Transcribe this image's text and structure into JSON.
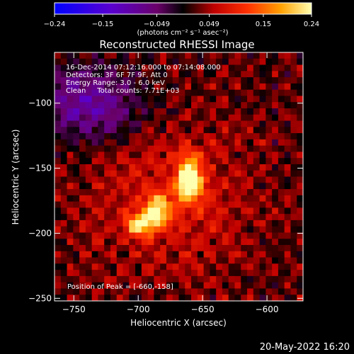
{
  "chart_data": {
    "type": "heatmap",
    "title": "Reconstructed RHESSI Image",
    "xlabel": "Heliocentric X (arcsec)",
    "ylabel": "Heliocentric Y (arcsec)",
    "xlim": [
      -765,
      -572
    ],
    "ylim": [
      -252,
      -61
    ],
    "x_ticks": [
      -750,
      -700,
      -650,
      -600
    ],
    "y_ticks": [
      -250,
      -200,
      -150,
      -100
    ],
    "x_tick_labels": [
      "−750",
      "−700",
      "−650",
      "−600"
    ],
    "y_tick_labels": [
      "−250",
      "−200",
      "−150",
      "−100"
    ],
    "colorbar": {
      "range": [
        -0.24,
        0.24
      ],
      "ticks": [
        -0.24,
        -0.15,
        -0.049,
        0.049,
        0.15,
        0.24
      ],
      "tick_labels": [
        "−0.24",
        "−0.15",
        "−0.049",
        "0.049",
        "0.15",
        "0.24"
      ],
      "unit_label": "(photons cm⁻² s⁻¹ asec⁻²)"
    },
    "sources": [
      {
        "x": -660,
        "y": -158,
        "peak": 0.24,
        "sigma_x": 7,
        "sigma_y": 12
      },
      {
        "x": -685,
        "y": -182,
        "peak": 0.17,
        "sigma_x": 7,
        "sigma_y": 8
      },
      {
        "x": -698,
        "y": -193,
        "peak": 0.19,
        "sigma_x": 8,
        "sigma_y": 6
      }
    ],
    "negative_region": {
      "x": -740,
      "y": -100,
      "peak": -0.12,
      "sigma_x": 30,
      "sigma_y": 20
    },
    "annotations": [
      "16-Dec-2014 07:12:16.000 to 07:14:08.000",
      "Detectors: 3F 6F 7F 9F, Att 0",
      "Energy Range: 3.0 - 6.0 keV",
      "Clean     Total counts: 7.71E+03"
    ],
    "peak_label": "Position of Peak = [-660,-158]"
  },
  "footer": {
    "date": "20-May-2022 16:20"
  }
}
